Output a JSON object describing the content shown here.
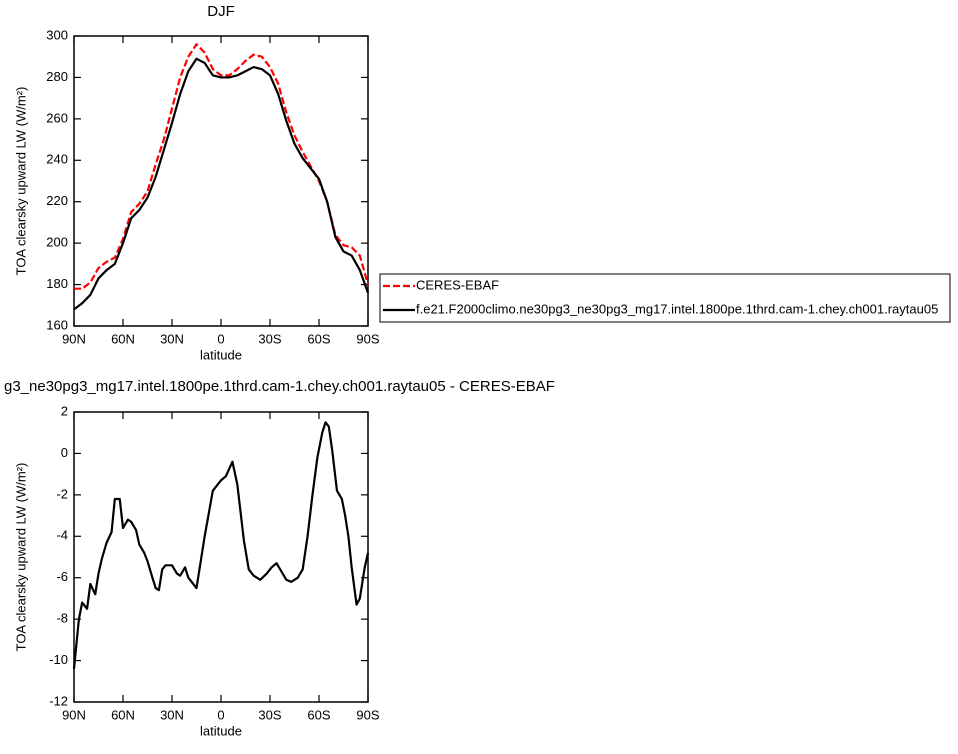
{
  "chart_data": [
    {
      "type": "line",
      "title": "DJF",
      "xlabel": "latitude",
      "ylabel": "TOA clearsky upward LW (W/m²)",
      "x": [
        90,
        85,
        80,
        75,
        70,
        65,
        60,
        55,
        50,
        45,
        40,
        35,
        30,
        25,
        20,
        15,
        10,
        5,
        0,
        -5,
        -10,
        -15,
        -20,
        -25,
        -30,
        -35,
        -40,
        -45,
        -50,
        -55,
        -60,
        -65,
        -70,
        -75,
        -80,
        -85,
        -90
      ],
      "series": [
        {
          "name": "CERES-EBAF",
          "color": "#ff0000",
          "dashed": true,
          "values": [
            178,
            178,
            181,
            188,
            191,
            193,
            202,
            215,
            219,
            225,
            238,
            250,
            265,
            280,
            290,
            296,
            292,
            284,
            281,
            281,
            284,
            288,
            291,
            290,
            285,
            277,
            263,
            252,
            244,
            237,
            230,
            220,
            204,
            199,
            198,
            194,
            180
          ]
        },
        {
          "name": "f.e21.F2000climo.ne30pg3_ne30pg3_mg17.intel.1800pe.1thrd.cam-1.chey.ch001.raytau05",
          "color": "#000000",
          "dashed": false,
          "values": [
            168,
            171,
            175,
            183,
            187,
            190,
            200,
            212,
            216,
            222,
            232,
            245,
            258,
            272,
            283,
            289,
            287,
            281,
            280,
            280,
            281,
            283,
            285,
            284,
            281,
            272,
            259,
            248,
            241,
            236,
            231,
            220,
            203,
            196,
            194,
            187,
            176
          ]
        }
      ],
      "xlim": [
        90,
        -90
      ],
      "xticks": [
        {
          "value": 90,
          "label": "90N"
        },
        {
          "value": 60,
          "label": "60N"
        },
        {
          "value": 30,
          "label": "30N"
        },
        0,
        {
          "value": -30,
          "label": "30S"
        },
        {
          "value": -60,
          "label": "60S"
        },
        {
          "value": -90,
          "label": "90S"
        }
      ],
      "ylim": [
        160,
        300
      ],
      "yticks": [
        160,
        180,
        200,
        220,
        240,
        260,
        280,
        300
      ],
      "legend": "right"
    },
    {
      "type": "line",
      "title": "g3_ne30pg3_mg17.intel.1800pe.1thrd.cam-1.chey.ch001.raytau05 - CERES-EBAF",
      "xlabel": "latitude",
      "ylabel": "TOA clearsky upward LW (W/m²)",
      "x": [
        90,
        87,
        85,
        82,
        80,
        77,
        75,
        73,
        70,
        67,
        65,
        62,
        60,
        57,
        55,
        52,
        50,
        47,
        45,
        42,
        40,
        38,
        36,
        34,
        30,
        27,
        25,
        22,
        20,
        17,
        15,
        10,
        5,
        0,
        -3,
        -7,
        -10,
        -14,
        -17,
        -20,
        -24,
        -28,
        -31,
        -34,
        -37,
        -40,
        -43,
        -47,
        -50,
        -53,
        -56,
        -59,
        -62,
        -64,
        -66,
        -68,
        -71,
        -74,
        -76,
        -78,
        -80,
        -83,
        -85,
        -88,
        -90
      ],
      "values": [
        -10.4,
        -8.0,
        -7.2,
        -7.5,
        -6.3,
        -6.8,
        -5.8,
        -5.1,
        -4.3,
        -3.8,
        -2.2,
        -2.2,
        -3.6,
        -3.2,
        -3.3,
        -3.7,
        -4.4,
        -4.8,
        -5.2,
        -6.0,
        -6.5,
        -6.6,
        -5.6,
        -5.4,
        -5.4,
        -5.8,
        -5.9,
        -5.5,
        -6.0,
        -6.3,
        -6.5,
        -4.0,
        -1.8,
        -1.3,
        -1.1,
        -0.4,
        -1.5,
        -4.2,
        -5.6,
        -5.9,
        -6.1,
        -5.8,
        -5.5,
        -5.3,
        -5.7,
        -6.1,
        -6.2,
        -6.0,
        -5.6,
        -4.0,
        -2.0,
        -0.2,
        1.0,
        1.5,
        1.3,
        0.2,
        -1.8,
        -2.2,
        -3.0,
        -4.0,
        -5.5,
        -7.3,
        -7.0,
        -5.5,
        -4.8
      ],
      "color": "#000000",
      "xlim": [
        90,
        -90
      ],
      "xticks": [
        {
          "value": 90,
          "label": "90N"
        },
        {
          "value": 60,
          "label": "60N"
        },
        {
          "value": 30,
          "label": "30N"
        },
        0,
        {
          "value": -30,
          "label": "30S"
        },
        {
          "value": -60,
          "label": "60S"
        },
        {
          "value": -90,
          "label": "90S"
        }
      ],
      "ylim": [
        -12,
        2
      ],
      "yticks": [
        -12,
        -10,
        -8,
        -6,
        -4,
        -2,
        0,
        2
      ]
    }
  ]
}
